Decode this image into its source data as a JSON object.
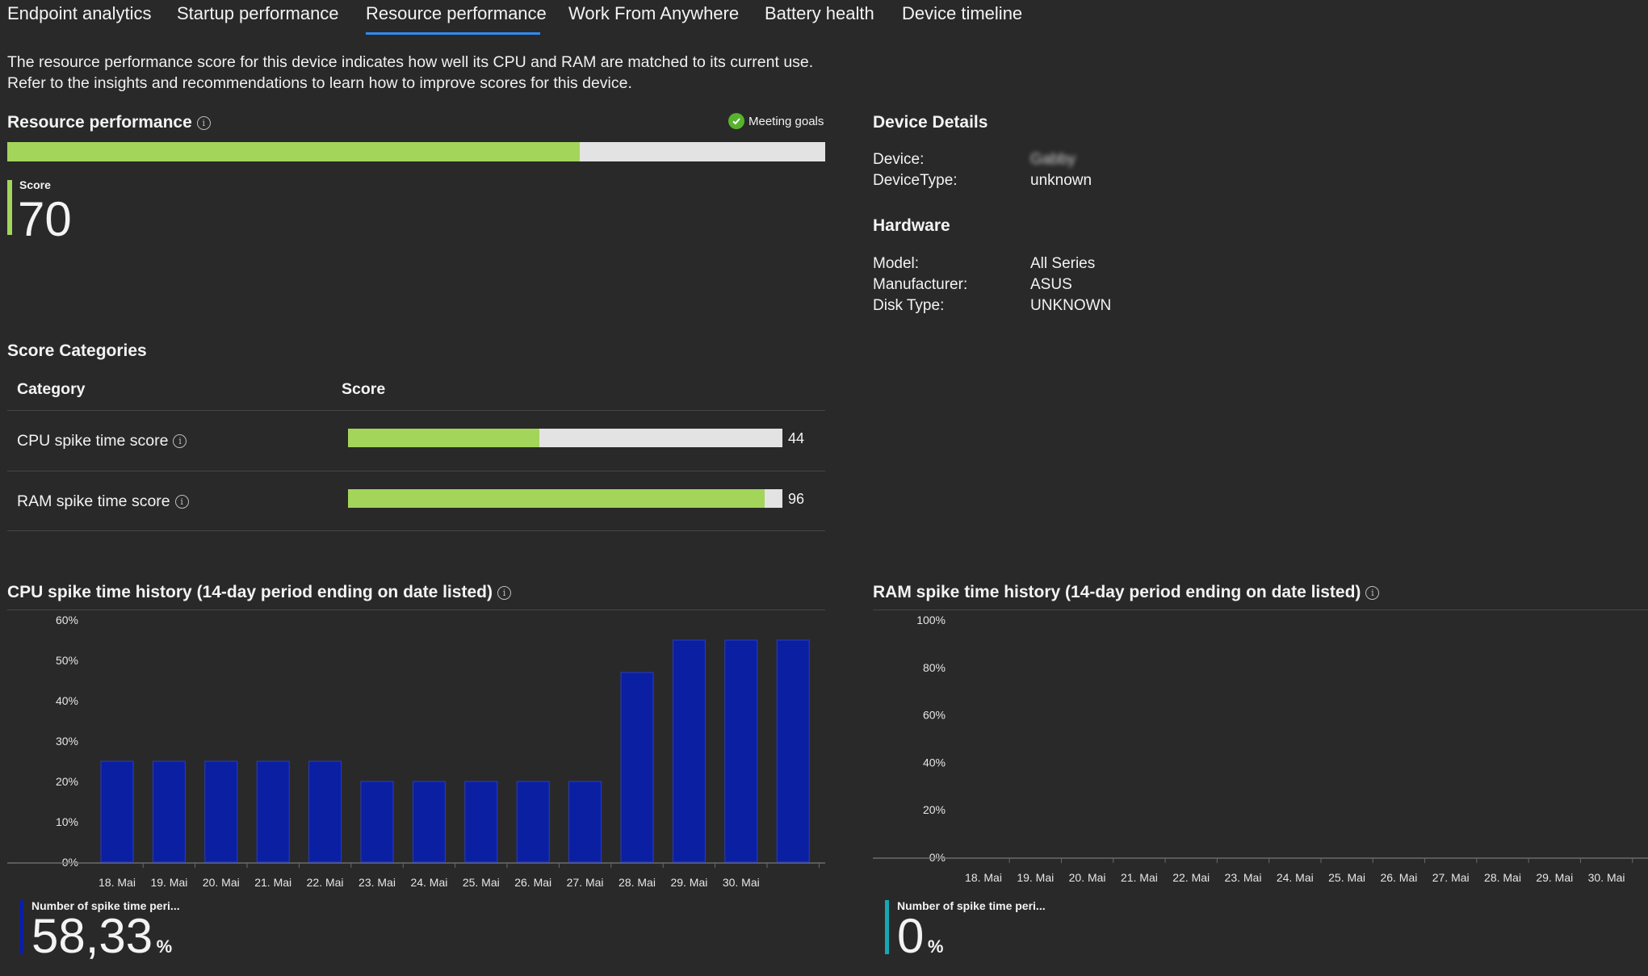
{
  "tabs": [
    {
      "label": "Endpoint analytics",
      "active": false
    },
    {
      "label": "Startup performance",
      "active": false
    },
    {
      "label": "Resource performance",
      "active": true
    },
    {
      "label": "Work From Anywhere",
      "active": false
    },
    {
      "label": "Battery health",
      "active": false
    },
    {
      "label": "Device timeline",
      "active": false
    }
  ],
  "description": {
    "line1": "The resource performance score for this device indicates how well its CPU and RAM are matched to its current use.",
    "line2": "Refer to the insights and recommendations to learn how to improve scores for this device."
  },
  "resource_performance": {
    "title": "Resource performance",
    "goal_status": "Meeting goals",
    "score_label": "Score",
    "score": 70,
    "progress_fraction": 0.7
  },
  "device_details": {
    "title": "Device Details",
    "device_label": "Device:",
    "device_value": "Gabby",
    "device_type_label": "DeviceType:",
    "device_type_value": "unknown"
  },
  "hardware": {
    "title": "Hardware",
    "model_label": "Model:",
    "model_value": "All Series",
    "manufacturer_label": "Manufacturer:",
    "manufacturer_value": "ASUS",
    "disk_type_label": "Disk Type:",
    "disk_type_value": "UNKNOWN"
  },
  "score_categories": {
    "title": "Score Categories",
    "col_category": "Category",
    "col_score": "Score",
    "rows": [
      {
        "name": "CPU spike time score",
        "value": 44
      },
      {
        "name": "RAM spike time score",
        "value": 96
      }
    ]
  },
  "colors": {
    "green": "#a3d55b",
    "track": "#e3e3e3",
    "bar_blue": "#0b1fa3",
    "kpi_blue": "#0b1fa3",
    "kpi_teal": "#16a8b5",
    "tab_underline": "#2f8cf2",
    "check_green": "#57b32d"
  },
  "chart_data": [
    {
      "type": "bar",
      "title": "CPU spike time history (14-day period ending on date listed)",
      "categories": [
        "18. Mai",
        "19. Mai",
        "20. Mai",
        "21. Mai",
        "22. Mai",
        "23. Mai",
        "24. Mai",
        "25. Mai",
        "26. Mai",
        "27. Mai",
        "28. Mai",
        "29. Mai",
        "30. Mai",
        ""
      ],
      "values": [
        25,
        25,
        25,
        25,
        25,
        20,
        20,
        20,
        20,
        20,
        47,
        55,
        55,
        55
      ],
      "yticks": [
        "0%",
        "10%",
        "20%",
        "30%",
        "40%",
        "50%",
        "60%"
      ],
      "ylim": [
        0,
        60
      ],
      "grid": false,
      "kpi_label": "Number of spike time peri...",
      "kpi_value": "58,33",
      "kpi_unit": "%"
    },
    {
      "type": "bar",
      "title": "RAM spike time history (14-day period ending on date listed)",
      "categories": [
        "18. Mai",
        "19. Mai",
        "20. Mai",
        "21. Mai",
        "22. Mai",
        "23. Mai",
        "24. Mai",
        "25. Mai",
        "26. Mai",
        "27. Mai",
        "28. Mai",
        "29. Mai",
        "30. Mai",
        ""
      ],
      "values": [
        0,
        0,
        0,
        0,
        0,
        0,
        0,
        0,
        0,
        0,
        0,
        0,
        0,
        0
      ],
      "yticks": [
        "0%",
        "20%",
        "40%",
        "60%",
        "80%",
        "100%"
      ],
      "ylim": [
        0,
        100
      ],
      "grid": false,
      "kpi_label": "Number of spike time peri...",
      "kpi_value": "0",
      "kpi_unit": "%"
    }
  ]
}
